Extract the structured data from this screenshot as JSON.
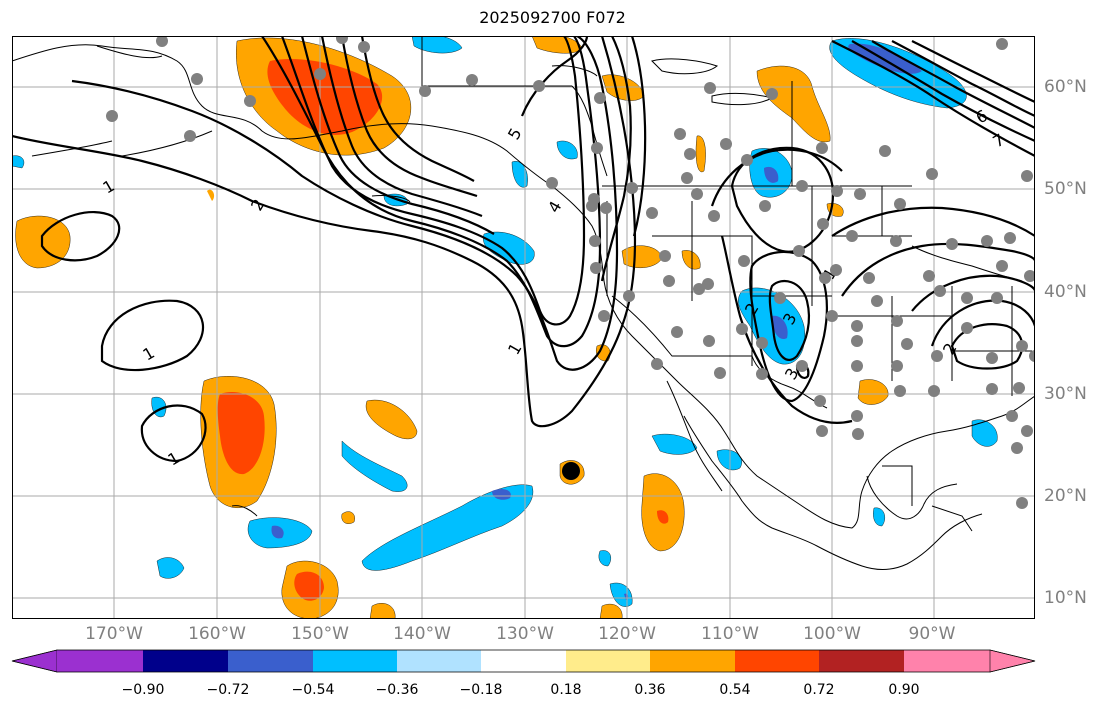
{
  "title": "2025092700 F072",
  "map": {
    "type": "weather-forecast-map",
    "projection": "lat-lon",
    "region": "North Pacific and North America",
    "lon_labels": [
      "170°W",
      "160°W",
      "150°W",
      "140°W",
      "130°W",
      "120°W",
      "110°W",
      "100°W",
      "90°W"
    ],
    "lat_labels": [
      "60°N",
      "50°N",
      "40°N",
      "30°N",
      "20°N",
      "10°N"
    ],
    "colorbar": {
      "ticks": [
        "−0.90",
        "−0.72",
        "−0.54",
        "−0.36",
        "−0.18",
        "0.18",
        "0.36",
        "0.54",
        "0.72",
        "0.90"
      ],
      "colors": [
        "#9b30d0",
        "#00008b",
        "#3a5fcd",
        "#00bfff",
        "#b0e2ff",
        "#ffffff",
        "#ffec8b",
        "#ffa500",
        "#ff4500",
        "#b22222",
        "#ff82ab"
      ]
    },
    "contour_labels": [
      "1",
      "1",
      "1",
      "2",
      "2",
      "1",
      "1",
      "2",
      "3",
      "4",
      "5",
      "6",
      "7",
      "3",
      "2",
      "1",
      "2",
      "2",
      "6",
      "7"
    ],
    "colors": {
      "grid": "#aaaaaa",
      "coast": "#000000",
      "contour": "#000000",
      "station": "#808080"
    }
  }
}
